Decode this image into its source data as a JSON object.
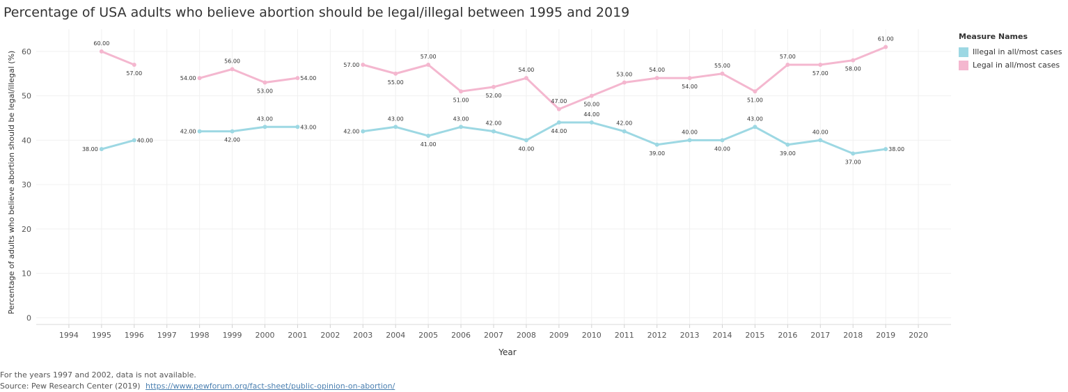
{
  "chart_data": {
    "type": "line",
    "title": "Percentage of USA adults who believe abortion should be legal/illegal between 1995 and 2019",
    "xlabel": "Year",
    "ylabel": "Percentage of adults who believe abortion should be legal/illegal (%)",
    "x_ticks": [
      1994,
      1995,
      1996,
      1997,
      1998,
      1999,
      2000,
      2001,
      2002,
      2003,
      2004,
      2005,
      2006,
      2007,
      2008,
      2009,
      2010,
      2011,
      2012,
      2013,
      2014,
      2015,
      2016,
      2017,
      2018,
      2019,
      2020
    ],
    "y_ticks": [
      0,
      10,
      20,
      30,
      40,
      50,
      60
    ],
    "xlim": [
      1993,
      2021
    ],
    "ylim": [
      -1.5,
      65
    ],
    "legend_title": "Measure Names",
    "series": [
      {
        "name": "Illegal in all/most cases",
        "color": "#9dd8e3",
        "segments": [
          [
            [
              1995,
              38
            ],
            [
              1996,
              40
            ]
          ],
          [
            [
              1998,
              42
            ],
            [
              1999,
              42
            ],
            [
              2000,
              43
            ],
            [
              2001,
              43
            ]
          ],
          [
            [
              2003,
              42
            ],
            [
              2004,
              43
            ],
            [
              2005,
              41
            ],
            [
              2006,
              43
            ],
            [
              2007,
              42
            ],
            [
              2008,
              40
            ],
            [
              2009,
              44
            ],
            [
              2010,
              44
            ],
            [
              2011,
              42
            ],
            [
              2012,
              39
            ],
            [
              2013,
              40
            ],
            [
              2014,
              40
            ],
            [
              2015,
              43
            ],
            [
              2016,
              39
            ],
            [
              2017,
              40
            ],
            [
              2018,
              37
            ],
            [
              2019,
              38
            ]
          ]
        ],
        "labels": [
          {
            "x": 1995,
            "text": "38.00",
            "pos": "left"
          },
          {
            "x": 1996,
            "text": "40.00",
            "pos": "right"
          },
          {
            "x": 1998,
            "text": "42.00",
            "pos": "left"
          },
          {
            "x": 1999,
            "text": "42.00",
            "pos": "below"
          },
          {
            "x": 2000,
            "text": "43.00",
            "pos": "above"
          },
          {
            "x": 2001,
            "text": "43.00",
            "pos": "right"
          },
          {
            "x": 2003,
            "text": "42.00",
            "pos": "left"
          },
          {
            "x": 2004,
            "text": "43.00",
            "pos": "above"
          },
          {
            "x": 2005,
            "text": "41.00",
            "pos": "below"
          },
          {
            "x": 2006,
            "text": "43.00",
            "pos": "above"
          },
          {
            "x": 2007,
            "text": "42.00",
            "pos": "above"
          },
          {
            "x": 2008,
            "text": "40.00",
            "pos": "below"
          },
          {
            "x": 2009,
            "text": "44.00",
            "pos": "below"
          },
          {
            "x": 2010,
            "text": "44.00",
            "pos": "above"
          },
          {
            "x": 2011,
            "text": "42.00",
            "pos": "above"
          },
          {
            "x": 2012,
            "text": "39.00",
            "pos": "below"
          },
          {
            "x": 2013,
            "text": "40.00",
            "pos": "above"
          },
          {
            "x": 2014,
            "text": "40.00",
            "pos": "below"
          },
          {
            "x": 2015,
            "text": "43.00",
            "pos": "above"
          },
          {
            "x": 2016,
            "text": "39.00",
            "pos": "below"
          },
          {
            "x": 2017,
            "text": "40.00",
            "pos": "above"
          },
          {
            "x": 2018,
            "text": "37.00",
            "pos": "below"
          },
          {
            "x": 2019,
            "text": "38.00",
            "pos": "right"
          }
        ]
      },
      {
        "name": "Legal in all/most cases",
        "color": "#f4b7cf",
        "segments": [
          [
            [
              1995,
              60
            ],
            [
              1996,
              57
            ]
          ],
          [
            [
              1998,
              54
            ],
            [
              1999,
              56
            ],
            [
              2000,
              53
            ],
            [
              2001,
              54
            ]
          ],
          [
            [
              2003,
              57
            ],
            [
              2004,
              55
            ],
            [
              2005,
              57
            ],
            [
              2006,
              51
            ],
            [
              2007,
              52
            ],
            [
              2008,
              54
            ],
            [
              2009,
              47
            ],
            [
              2010,
              50
            ],
            [
              2011,
              53
            ],
            [
              2012,
              54
            ],
            [
              2013,
              54
            ],
            [
              2014,
              55
            ],
            [
              2015,
              51
            ],
            [
              2016,
              57
            ],
            [
              2017,
              57
            ],
            [
              2018,
              58
            ],
            [
              2019,
              61
            ]
          ]
        ],
        "labels": [
          {
            "x": 1995,
            "text": "60.00",
            "pos": "above"
          },
          {
            "x": 1996,
            "text": "57.00",
            "pos": "below"
          },
          {
            "x": 1998,
            "text": "54.00",
            "pos": "left"
          },
          {
            "x": 1999,
            "text": "56.00",
            "pos": "above"
          },
          {
            "x": 2000,
            "text": "53.00",
            "pos": "below"
          },
          {
            "x": 2001,
            "text": "54.00",
            "pos": "right"
          },
          {
            "x": 2003,
            "text": "57.00",
            "pos": "left"
          },
          {
            "x": 2004,
            "text": "55.00",
            "pos": "below"
          },
          {
            "x": 2005,
            "text": "57.00",
            "pos": "above"
          },
          {
            "x": 2006,
            "text": "51.00",
            "pos": "below"
          },
          {
            "x": 2007,
            "text": "52.00",
            "pos": "below"
          },
          {
            "x": 2008,
            "text": "54.00",
            "pos": "above"
          },
          {
            "x": 2009,
            "text": "47.00",
            "pos": "above"
          },
          {
            "x": 2010,
            "text": "50.00",
            "pos": "below"
          },
          {
            "x": 2011,
            "text": "53.00",
            "pos": "above"
          },
          {
            "x": 2012,
            "text": "54.00",
            "pos": "above"
          },
          {
            "x": 2013,
            "text": "54.00",
            "pos": "below"
          },
          {
            "x": 2014,
            "text": "55.00",
            "pos": "above"
          },
          {
            "x": 2015,
            "text": "51.00",
            "pos": "below"
          },
          {
            "x": 2016,
            "text": "57.00",
            "pos": "above"
          },
          {
            "x": 2017,
            "text": "57.00",
            "pos": "below"
          },
          {
            "x": 2018,
            "text": "58.00",
            "pos": "below"
          },
          {
            "x": 2019,
            "text": "61.00",
            "pos": "above"
          }
        ]
      }
    ]
  },
  "footnote": {
    "note": "For the years 1997 and 2002, data is not available.",
    "source_prefix": "Source: Pew Research Center (2019)",
    "source_link": "https://www.pewforum.org/fact-sheet/public-opinion-on-abortion/"
  }
}
